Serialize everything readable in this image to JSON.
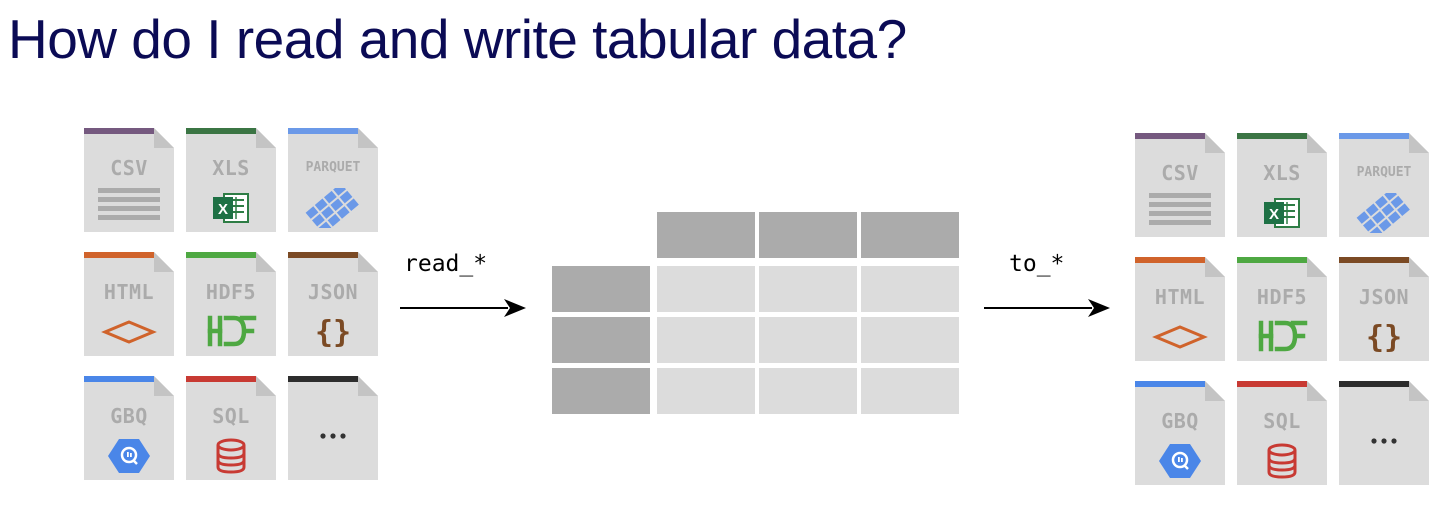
{
  "title": "How do I read and write tabular data?",
  "read_label": "read_*",
  "write_label": "to_*",
  "formats": [
    {
      "label": "CSV",
      "color": "#75597f",
      "icon": "lines-icon"
    },
    {
      "label": "XLS",
      "color": "#3b7544",
      "icon": "excel-icon"
    },
    {
      "label": "PARQUET",
      "color": "#6b99e8",
      "icon": "parquet-icon"
    },
    {
      "label": "HTML",
      "color": "#d0632b",
      "icon": "html-diamond-icon"
    },
    {
      "label": "HDF5",
      "color": "#4ea842",
      "icon": "hdf-icon"
    },
    {
      "label": "JSON",
      "color": "#7b4a24",
      "icon": "braces-icon"
    },
    {
      "label": "GBQ",
      "color": "#4a86e8",
      "icon": "bigquery-icon"
    },
    {
      "label": "SQL",
      "color": "#c83a33",
      "icon": "database-icon"
    },
    {
      "label": "",
      "color": "#2d2d2d",
      "icon": "ellipsis-icon"
    }
  ],
  "colors": {
    "title": "#0b0b55",
    "file_bg": "#dcdcdc",
    "file_fold": "#c4c4c4",
    "file_text": "#ababab",
    "table_header": "#ababab",
    "table_cell": "#dcdcdc"
  }
}
